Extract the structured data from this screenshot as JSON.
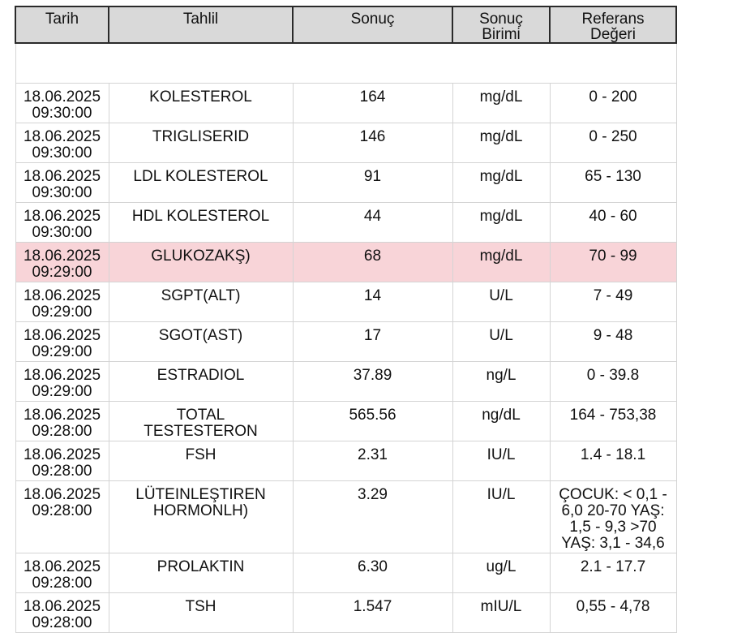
{
  "headers": {
    "date": "Tarih",
    "test": "Tahlil",
    "result": "Sonuç",
    "unit_line1": "Sonuç",
    "unit_line2": "Birimi",
    "ref_line1": "Referans",
    "ref_line2": "Değeri"
  },
  "colors": {
    "header_bg": "#d9d9d9",
    "flag_row_bg": "#f8d4d8"
  },
  "rows": [
    {
      "date": "18.06.2025",
      "time": "09:30:00",
      "test_line1": "KOLESTEROL",
      "test_line2": "",
      "result": "164",
      "unit": "mg/dL",
      "ref_lines": [
        "0 - 200"
      ],
      "flagged": false
    },
    {
      "date": "18.06.2025",
      "time": "09:30:00",
      "test_line1": "TRIGLISERID",
      "test_line2": "",
      "result": "146",
      "unit": "mg/dL",
      "ref_lines": [
        "0 - 250"
      ],
      "flagged": false
    },
    {
      "date": "18.06.2025",
      "time": "09:30:00",
      "test_line1": "LDL KOLESTEROL",
      "test_line2": "",
      "result": "91",
      "unit": "mg/dL",
      "ref_lines": [
        "65 - 130"
      ],
      "flagged": false
    },
    {
      "date": "18.06.2025",
      "time": "09:30:00",
      "test_line1": "HDL KOLESTEROL",
      "test_line2": "",
      "result": "44",
      "unit": "mg/dL",
      "ref_lines": [
        "40 - 60"
      ],
      "flagged": false
    },
    {
      "date": "18.06.2025",
      "time": "09:29:00",
      "test_line1": "GLUKOZAKŞ)",
      "test_line2": "",
      "result": "68",
      "unit": "mg/dL",
      "ref_lines": [
        "70 - 99"
      ],
      "flagged": true
    },
    {
      "date": "18.06.2025",
      "time": "09:29:00",
      "test_line1": "SGPT(ALT)",
      "test_line2": "",
      "result": "14",
      "unit": "U/L",
      "ref_lines": [
        "7 - 49"
      ],
      "flagged": false
    },
    {
      "date": "18.06.2025",
      "time": "09:29:00",
      "test_line1": "SGOT(AST)",
      "test_line2": "",
      "result": "17",
      "unit": "U/L",
      "ref_lines": [
        "9 - 48"
      ],
      "flagged": false
    },
    {
      "date": "18.06.2025",
      "time": "09:29:00",
      "test_line1": "ESTRADIOL",
      "test_line2": "",
      "result": "37.89",
      "unit": "ng/L",
      "ref_lines": [
        "0 - 39.8"
      ],
      "flagged": false
    },
    {
      "date": "18.06.2025",
      "time": "09:28:00",
      "test_line1": "TOTAL",
      "test_line2": "TESTESTERON",
      "result": "565.56",
      "unit": "ng/dL",
      "ref_lines": [
        "164 - 753,38"
      ],
      "flagged": false
    },
    {
      "date": "18.06.2025",
      "time": "09:28:00",
      "test_line1": "FSH",
      "test_line2": "",
      "result": "2.31",
      "unit": "IU/L",
      "ref_lines": [
        "1.4 - 18.1"
      ],
      "flagged": false
    },
    {
      "date": "18.06.2025",
      "time": "09:28:00",
      "test_line1": "LÜTEINLEŞTIREN",
      "test_line2": "HORMONLH)",
      "result": "3.29",
      "unit": "IU/L",
      "ref_lines": [
        "ÇOCUK: < 0,1 -",
        "6,0 20-70 YAŞ:",
        "1,5 - 9,3 >70",
        "YAŞ: 3,1 - 34,6"
      ],
      "flagged": false,
      "tall": true
    },
    {
      "date": "18.06.2025",
      "time": "09:28:00",
      "test_line1": "PROLAKTIN",
      "test_line2": "",
      "result": "6.30",
      "unit": "ug/L",
      "ref_lines": [
        "2.1 - 17.7"
      ],
      "flagged": false
    },
    {
      "date": "18.06.2025",
      "time": "09:28:00",
      "test_line1": "TSH",
      "test_line2": "",
      "result": "1.547",
      "unit": "mIU/L",
      "ref_lines": [
        "0,55 - 4,78"
      ],
      "flagged": false
    }
  ]
}
